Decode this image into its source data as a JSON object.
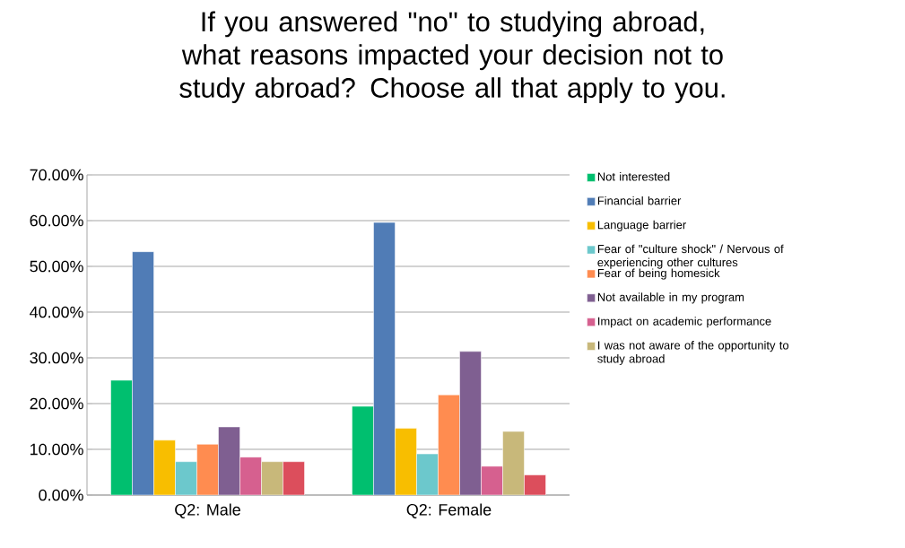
{
  "chart_data": {
    "type": "bar",
    "title": "If you answered \"no\" to studying abroad, what reasons impacted your decision not to study abroad? Choose all that apply to you.",
    "categories": [
      "Q2: Male",
      "Q2: Female"
    ],
    "series": [
      {
        "name": "Not interested",
        "color": "#00bf6f",
        "values": [
          25.1,
          19.4
        ]
      },
      {
        "name": "Financial barrier",
        "color": "#507cb6",
        "values": [
          53.2,
          59.6
        ]
      },
      {
        "name": "Language barrier",
        "color": "#f8be00",
        "values": [
          12.0,
          14.6
        ]
      },
      {
        "name": "Fear of \"culture shock\" / Nervous of experiencing other cultures",
        "color": "#6cc8cc",
        "values": [
          7.3,
          9.0
        ]
      },
      {
        "name": "Fear of being homesick",
        "color": "#ff8c50",
        "values": [
          11.1,
          21.9
        ]
      },
      {
        "name": "Not available in my program",
        "color": "#7f5f91",
        "values": [
          14.9,
          31.4
        ]
      },
      {
        "name": "Impact on academic performance",
        "color": "#d6608f",
        "values": [
          8.3,
          6.3
        ]
      },
      {
        "name": "I was not aware of the opportunity to study abroad",
        "color": "#c8b87a",
        "values": [
          7.3,
          13.9
        ]
      },
      {
        "color": "#dc4e5c",
        "values": [
          7.3,
          4.4
        ]
      }
    ],
    "ylim": [
      0,
      70
    ],
    "yticks": [
      {
        "value": 0,
        "label": "0.00%"
      },
      {
        "value": 10,
        "label": "10.00%"
      },
      {
        "value": 20,
        "label": "20.00%"
      },
      {
        "value": 30,
        "label": "30.00%"
      },
      {
        "value": 40,
        "label": "40.00%"
      },
      {
        "value": 50,
        "label": "50.00%"
      },
      {
        "value": 60,
        "label": "60.00%"
      },
      {
        "value": 70,
        "label": "70.00%"
      }
    ],
    "grid": "y",
    "legend": "right"
  }
}
